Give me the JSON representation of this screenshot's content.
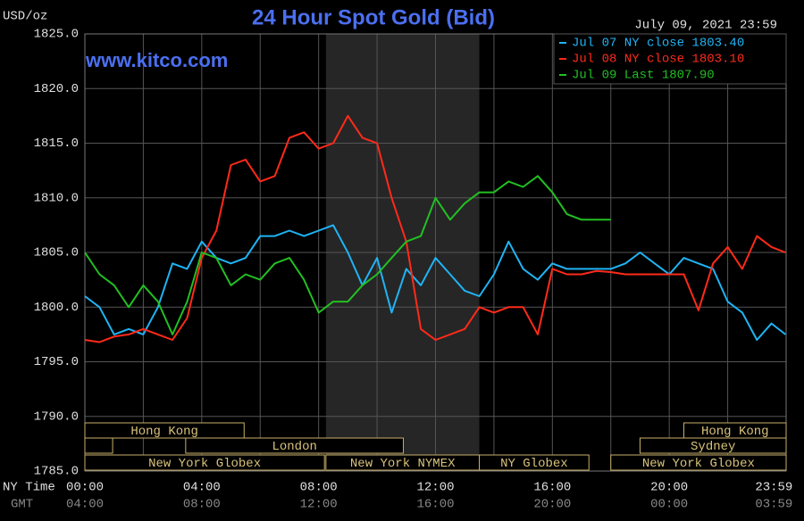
{
  "chart_data": {
    "type": "line",
    "title": "24 Hour Spot Gold (Bid)",
    "subtitle": "www.kitco.com",
    "date_label": "July 09, 2021 23:59",
    "y_label": "USD/oz",
    "x_label": "NY Time",
    "x2_label": "GMT",
    "x": [
      0,
      0.5,
      1,
      1.5,
      2,
      2.5,
      3,
      3.5,
      4,
      4.5,
      5,
      5.5,
      6,
      6.5,
      7,
      7.5,
      8,
      8.5,
      9,
      9.5,
      10,
      10.5,
      11,
      11.5,
      12,
      12.5,
      13,
      13.5,
      14,
      14.5,
      15,
      15.5,
      16,
      16.5,
      17,
      17.5,
      18,
      18.5,
      19,
      19.5,
      20,
      20.5,
      21,
      21.5,
      22,
      22.5,
      23,
      23.5,
      23.98
    ],
    "series": [
      {
        "name": "Jul 07 NY close 1803.40",
        "color": "#1fb4f5",
        "values": [
          1801,
          1800,
          1797.5,
          1798,
          1797.5,
          1800,
          1804,
          1803.5,
          1806,
          1804.5,
          1804,
          1804.5,
          1806.5,
          1806.5,
          1807,
          1806.5,
          1807,
          1807.5,
          1805,
          1802,
          1804.5,
          1799.5,
          1803.5,
          1802,
          1804.5,
          1803,
          1801.5,
          1801,
          1803,
          1806,
          1803.5,
          1802.5,
          1804,
          1803.5,
          1803.5,
          1803.5,
          1803.5,
          1804,
          1805,
          1804,
          1803,
          1804.5,
          1804,
          1803.5,
          1800.5,
          1799.5,
          1797,
          1798.5,
          1797.5
        ]
      },
      {
        "name": "Jul 08 NY close 1803.10",
        "color": "#ff2a1a",
        "values": [
          1797,
          1796.8,
          1797.3,
          1797.5,
          1798,
          1797.5,
          1797,
          1799,
          1804.5,
          1807,
          1813,
          1813.5,
          1811.5,
          1812,
          1815.5,
          1816,
          1814.5,
          1815,
          1817.5,
          1815.5,
          1815,
          1810,
          1806,
          1798,
          1797,
          1797.5,
          1798,
          1800,
          1799.5,
          1800,
          1800,
          1797.5,
          1803.5,
          1803,
          1803,
          1803.3,
          1803.2,
          1803,
          1803,
          1803,
          1803,
          1803,
          1799.7,
          1804,
          1805.5,
          1803.5,
          1806.5,
          1805.5,
          1805
        ]
      },
      {
        "name": "Jul 09 Last 1807.90",
        "color": "#22c022",
        "values": [
          1805,
          1803,
          1802,
          1800,
          1802,
          1800.5,
          1797.5,
          1800.5,
          1805,
          1804.5,
          1802,
          1803,
          1802.5,
          1804,
          1804.5,
          1802.5,
          1799.5,
          1800.5,
          1800.5,
          1802,
          1803,
          1804.5,
          1806,
          1806.5,
          1810,
          1808,
          1809.5,
          1810.5,
          1810.5,
          1811.5,
          1811,
          1812,
          1810.5,
          1808.5,
          1808,
          1808,
          1808,
          null,
          null,
          null,
          null,
          null,
          null,
          null,
          null,
          null,
          null,
          null,
          null
        ]
      }
    ],
    "xlim": [
      0,
      24
    ],
    "ylim": [
      1785,
      1825
    ],
    "yticks": [
      {
        "value": 1825,
        "label": "1825.0"
      },
      {
        "value": 1820,
        "label": "1820.0"
      },
      {
        "value": 1815,
        "label": "1815.0"
      },
      {
        "value": 1810,
        "label": "1810.0"
      },
      {
        "value": 1805,
        "label": "1805.0"
      },
      {
        "value": 1800,
        "label": "1800.0"
      },
      {
        "value": 1795,
        "label": "1795.0"
      },
      {
        "value": 1790,
        "label": "1790.0"
      },
      {
        "value": 1785,
        "label": "1785.0"
      }
    ],
    "xticks": [
      {
        "value": 0,
        "label": "00:00"
      },
      {
        "value": 4,
        "label": "04:00"
      },
      {
        "value": 8,
        "label": "08:00"
      },
      {
        "value": 12,
        "label": "12:00"
      },
      {
        "value": 16,
        "label": "16:00"
      },
      {
        "value": 20,
        "label": "20:00"
      },
      {
        "value": 23.98,
        "label": "23:59"
      }
    ],
    "x2ticks": [
      {
        "value": 0,
        "label": "04:00"
      },
      {
        "value": 4,
        "label": "08:00"
      },
      {
        "value": 8,
        "label": "12:00"
      },
      {
        "value": 12,
        "label": "16:00"
      },
      {
        "value": 16,
        "label": "20:00"
      },
      {
        "value": 20,
        "label": "00:00"
      },
      {
        "value": 23.98,
        "label": "03:59"
      }
    ],
    "xgrid": [
      0,
      2,
      4,
      6,
      8,
      10,
      12,
      14,
      16,
      18,
      20,
      22,
      24
    ],
    "grid": true,
    "shade": [
      8.25,
      13.5
    ],
    "sessions": [
      {
        "label": "Hong Kong",
        "start": 0,
        "end": 5.45,
        "row": 0
      },
      {
        "label": "Hong Kong",
        "start": 20.5,
        "end": 24,
        "row": 0
      },
      {
        "start": 0,
        "end": 0.95,
        "row": 1
      },
      {
        "label": "London",
        "start": 3.45,
        "end": 10.9,
        "row": 1
      },
      {
        "label": "Sydney",
        "start": 19,
        "end": 24,
        "row": 1
      },
      {
        "label": "New York Globex",
        "start": 0,
        "end": 8.2,
        "row": 2
      },
      {
        "label": "New York NYMEX",
        "start": 8.25,
        "end": 13.5,
        "row": 2
      },
      {
        "label": "NY Globex",
        "start": 13.5,
        "end": 17.25,
        "row": 2
      },
      {
        "label": "New York Globex",
        "start": 18,
        "end": 24,
        "row": 2
      }
    ]
  }
}
